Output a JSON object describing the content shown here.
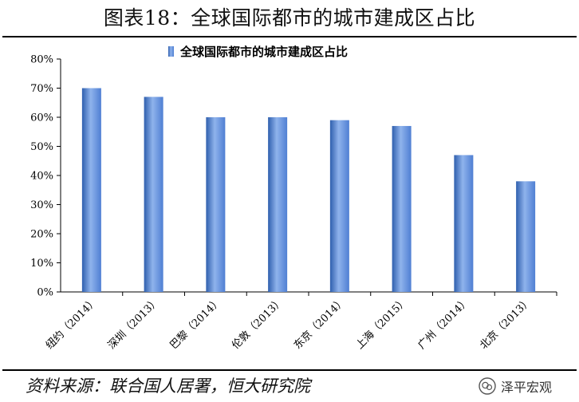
{
  "figure_title": "图表18：全球国际都市的城市建成区占比",
  "source_note": "资料来源：联合国人居署，恒大研究院",
  "watermark": {
    "icon": "wechat-icon",
    "text": "泽平宏观"
  },
  "colors": {
    "bar": "#4f7fd3",
    "bar_highlight": "#8fb3ec",
    "bar_edge": "#2f5fae",
    "axis": "#000000"
  },
  "chart_data": {
    "type": "bar",
    "legend": "全球国际都市的城市建成区占比",
    "legend_position": "top-center",
    "grid": false,
    "categories": [
      "纽约（2014）",
      "深圳（2013）",
      "巴黎（2014）",
      "伦敦（2013）",
      "东京（2014）",
      "上海（2015）",
      "广州（2014）",
      "北京（2013）"
    ],
    "values": [
      70,
      67,
      60,
      60,
      59,
      57,
      47,
      38
    ],
    "ylim": [
      0,
      80
    ],
    "yticks": [
      0,
      10,
      20,
      30,
      40,
      50,
      60,
      70,
      80
    ],
    "ytick_labels": [
      "0%",
      "10%",
      "20%",
      "30%",
      "40%",
      "50%",
      "60%",
      "70%",
      "80%"
    ]
  }
}
